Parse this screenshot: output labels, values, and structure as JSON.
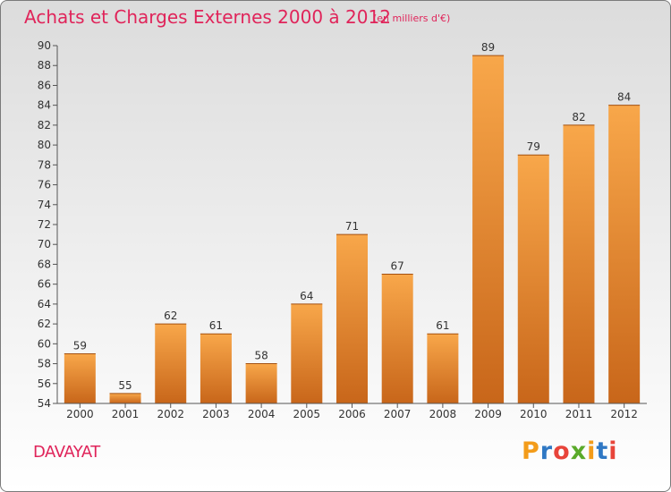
{
  "header": {
    "title": "Achats et Charges Externes 2000 à 2012",
    "unit": "(en milliers d'€)"
  },
  "footer": {
    "commune": "DAVAYAT",
    "logo_text": "Proxiti",
    "logo_colors": [
      "#f39c1a",
      "#2f78c4",
      "#e8443a",
      "#5aaa2a",
      "#f39c1a",
      "#2f78c4",
      "#e8443a"
    ]
  },
  "colors": {
    "bar_top": "#f8a74a",
    "bar_bottom": "#c8661a",
    "accent": "#e0245a"
  },
  "chart_data": {
    "type": "bar",
    "categories": [
      "2000",
      "2001",
      "2002",
      "2003",
      "2004",
      "2005",
      "2006",
      "2007",
      "2008",
      "2009",
      "2010",
      "2011",
      "2012"
    ],
    "values": [
      59,
      55,
      62,
      61,
      58,
      64,
      71,
      67,
      61,
      89,
      79,
      82,
      84
    ],
    "title": "Achats et Charges Externes 2000 à 2012",
    "xlabel": "",
    "ylabel": "",
    "ylim": [
      54,
      90
    ],
    "yticks": [
      54,
      56,
      58,
      60,
      62,
      64,
      66,
      68,
      70,
      72,
      74,
      76,
      78,
      80,
      82,
      84,
      86,
      88,
      90
    ],
    "grid": false,
    "legend": "none"
  }
}
